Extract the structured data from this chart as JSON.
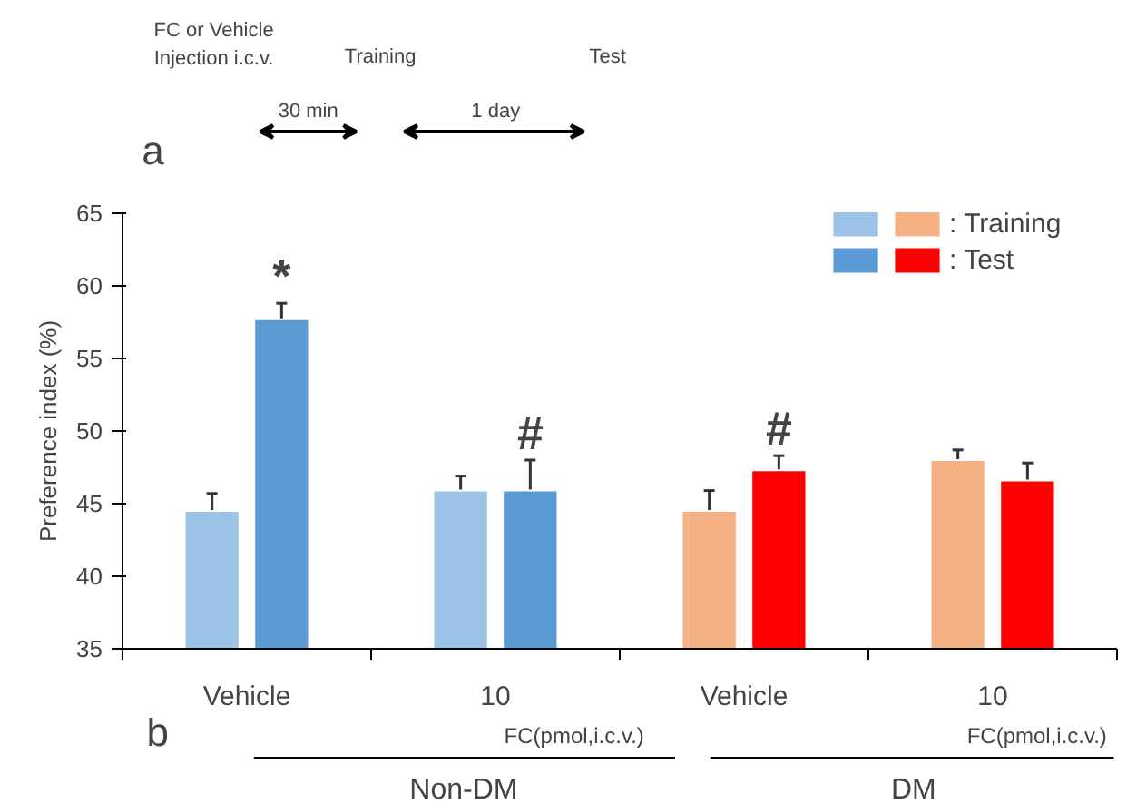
{
  "chart_data": {
    "type": "bar",
    "ylabel": "Preference index (%)",
    "categories": [
      "Vehicle",
      "10",
      "Vehicle",
      "10"
    ],
    "series": [
      {
        "name": ": Training",
        "colors": [
          "#9dc3e6",
          "#9dc3e6",
          "#f4b183",
          "#f4b183"
        ],
        "values": [
          44.5,
          45.9,
          44.5,
          48.0
        ],
        "errors": [
          1.2,
          1.0,
          1.4,
          0.7
        ]
      },
      {
        "name": ": Test",
        "colors": [
          "#5b9bd5",
          "#5b9bd5",
          "#ff0000",
          "#ff0000"
        ],
        "values": [
          57.7,
          45.9,
          47.3,
          46.6
        ],
        "errors": [
          1.1,
          2.1,
          1.0,
          1.2
        ],
        "value_labels": [
          "*",
          "#",
          "#",
          null
        ]
      }
    ],
    "ylim": [
      35,
      65
    ],
    "yticks": [
      35,
      40,
      45,
      50,
      55,
      60,
      65
    ],
    "grid": false,
    "legend": "top right",
    "annotations": [
      "a",
      "FC or Vehicle\nInjection i.c.v.",
      "Training",
      "Test",
      "30 min",
      "1 day",
      "b",
      "FC(pmol,i.c.v.)",
      "FC(pmol,i.c.v.)",
      "Non-DM",
      "DM"
    ]
  }
}
